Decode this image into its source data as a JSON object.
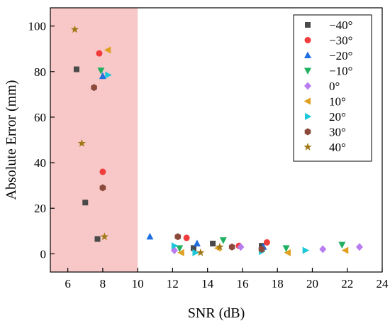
{
  "chart_data": {
    "type": "scatter",
    "title": "",
    "xlabel": "SNR (dB)",
    "ylabel": "Absolute Error (mm)",
    "xlim": [
      5,
      24
    ],
    "ylim": [
      -8,
      108
    ],
    "xticks": [
      6,
      8,
      10,
      12,
      14,
      16,
      18,
      20,
      22,
      24
    ],
    "yticks": [
      0,
      20,
      40,
      60,
      80,
      100
    ],
    "grid": false,
    "legend_position": "top-right",
    "highlight_region": {
      "x": [
        5,
        10
      ],
      "color": "#f8c8c8"
    },
    "series": [
      {
        "name": "−40°",
        "marker": "square",
        "color": "#4a4a4a",
        "points": [
          [
            6.5,
            81
          ],
          [
            7.0,
            22.5
          ],
          [
            7.7,
            6.5
          ],
          [
            13.2,
            2.5
          ],
          [
            14.3,
            4.5
          ],
          [
            17.1,
            3.5
          ]
        ]
      },
      {
        "name": "−30°",
        "marker": "circle",
        "color": "#f03c3c",
        "points": [
          [
            7.8,
            88
          ],
          [
            8.0,
            36
          ],
          [
            12.8,
            7
          ],
          [
            15.8,
            3.5
          ],
          [
            17.4,
            5
          ]
        ]
      },
      {
        "name": "−20°",
        "marker": "triangle-up",
        "color": "#1f6fe0",
        "points": [
          [
            8.0,
            78
          ],
          [
            10.7,
            7.5
          ],
          [
            13.4,
            4.5
          ],
          [
            17.2,
            3
          ]
        ]
      },
      {
        "name": "−10°",
        "marker": "triangle-down",
        "color": "#1fb061",
        "points": [
          [
            7.9,
            80.5
          ],
          [
            12.4,
            2.5
          ],
          [
            14.9,
            6
          ],
          [
            18.5,
            2.5
          ],
          [
            21.7,
            4
          ]
        ]
      },
      {
        "name": "0°",
        "marker": "diamond",
        "color": "#b87cf0",
        "points": [
          [
            12.1,
            1.5
          ],
          [
            15.9,
            3
          ],
          [
            20.6,
            2
          ],
          [
            22.7,
            3
          ]
        ]
      },
      {
        "name": "10°",
        "marker": "triangle-left",
        "color": "#e0a020",
        "points": [
          [
            8.3,
            89.5
          ],
          [
            12.5,
            0.5
          ],
          [
            14.6,
            2.5
          ],
          [
            18.6,
            0.5
          ],
          [
            21.9,
            1.5
          ]
        ]
      },
      {
        "name": "20°",
        "marker": "triangle-right",
        "color": "#1ec8d8",
        "points": [
          [
            8.3,
            78.5
          ],
          [
            12.1,
            3.5
          ],
          [
            13.3,
            0.5
          ],
          [
            17.1,
            1
          ],
          [
            19.6,
            1.5
          ]
        ]
      },
      {
        "name": "30°",
        "marker": "hexagon",
        "color": "#8c4a3c",
        "points": [
          [
            7.5,
            73
          ],
          [
            8.0,
            29
          ],
          [
            12.3,
            7.5
          ],
          [
            15.4,
            3
          ],
          [
            17.1,
            2
          ]
        ]
      },
      {
        "name": "40°",
        "marker": "star",
        "color": "#a07818",
        "points": [
          [
            6.4,
            98.5
          ],
          [
            6.8,
            48.5
          ],
          [
            8.1,
            7.5
          ],
          [
            13.6,
            0.5
          ],
          [
            14.7,
            3
          ]
        ]
      }
    ]
  }
}
